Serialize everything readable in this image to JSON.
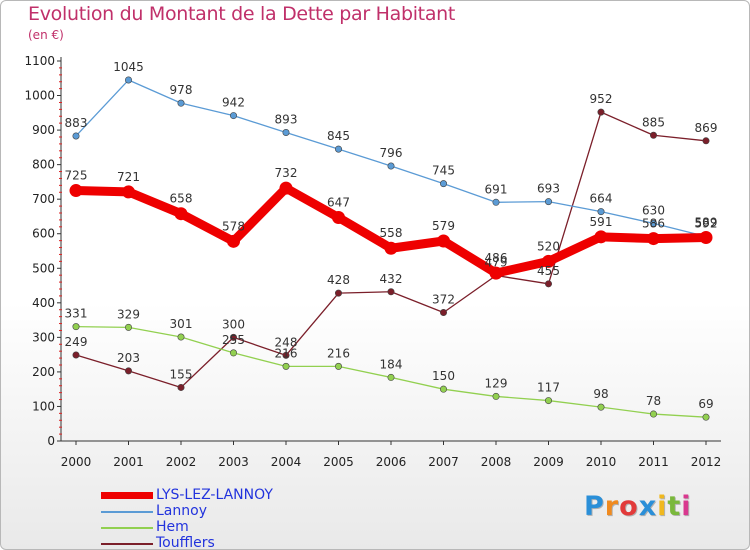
{
  "title": "Evolution du Montant de la Dette par Habitant",
  "subtitle": "(en €)",
  "logo": {
    "text": "Proxiti",
    "colors": [
      "#2a8fd8",
      "#f08a1e",
      "#e23a3a",
      "#2a8fd8",
      "#f0b81e",
      "#7ab83c",
      "#d9388f"
    ]
  },
  "chart_data": {
    "type": "line",
    "x": [
      "2000",
      "2001",
      "2002",
      "2003",
      "2004",
      "2005",
      "2006",
      "2007",
      "2008",
      "2009",
      "2010",
      "2011",
      "2012"
    ],
    "ylim": [
      0,
      1100
    ],
    "yticks": [
      0,
      100,
      200,
      300,
      400,
      500,
      600,
      700,
      800,
      900,
      1000,
      1100
    ],
    "grid": false,
    "legend": "bottom-left",
    "series": [
      {
        "name": "LYS-LEZ-LANNOY",
        "color": "#ee0000",
        "values": [
          725,
          721,
          658,
          578,
          732,
          647,
          558,
          579,
          486,
          520,
          591,
          586,
          589
        ]
      },
      {
        "name": "Lannoy",
        "color": "#5b9bd5",
        "values": [
          883,
          1045,
          978,
          942,
          893,
          845,
          796,
          745,
          691,
          693,
          664,
          630,
          592
        ]
      },
      {
        "name": "Hem",
        "color": "#92d050",
        "values": [
          331,
          329,
          301,
          255,
          216,
          216,
          184,
          150,
          129,
          117,
          98,
          78,
          69
        ]
      },
      {
        "name": "Toufflers",
        "color": "#7b1f2a",
        "values": [
          249,
          203,
          155,
          300,
          248,
          428,
          432,
          372,
          479,
          455,
          952,
          885,
          869
        ]
      }
    ]
  }
}
